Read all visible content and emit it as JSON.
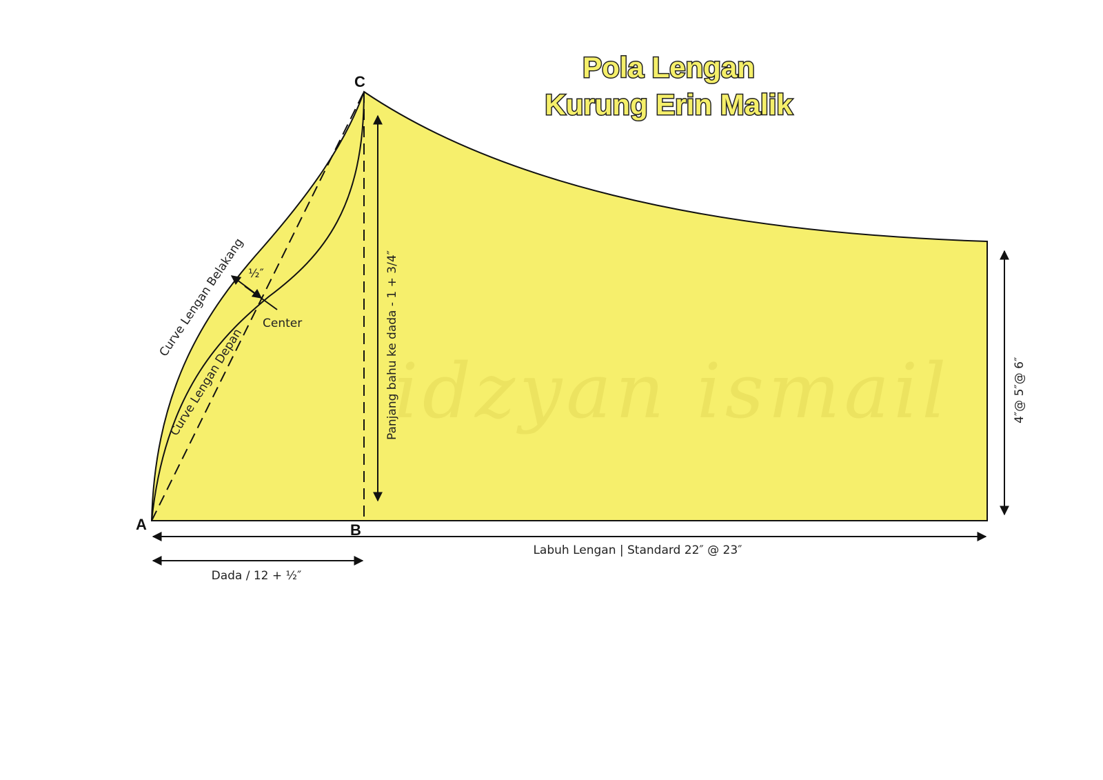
{
  "title": {
    "line1": "Pola Lengan",
    "line2": "Kurung Erin Malik"
  },
  "points": {
    "a": "A",
    "b": "B",
    "c": "C"
  },
  "labels": {
    "curve_back": "Curve Lengan Belakang",
    "curve_front": "Curve Lengan Depan",
    "offset": "½″",
    "center": "Center",
    "shoulder_to_chest": "Panjang bahu ke  dada - 1 + 3/4″",
    "cuff": "4″@ 5″@ 6″",
    "sleeve_length": "Labuh Lengan | Standard 22″ @ 23″",
    "chest": "Dada / 12 + ½″"
  },
  "watermark": "idzyan ismail"
}
